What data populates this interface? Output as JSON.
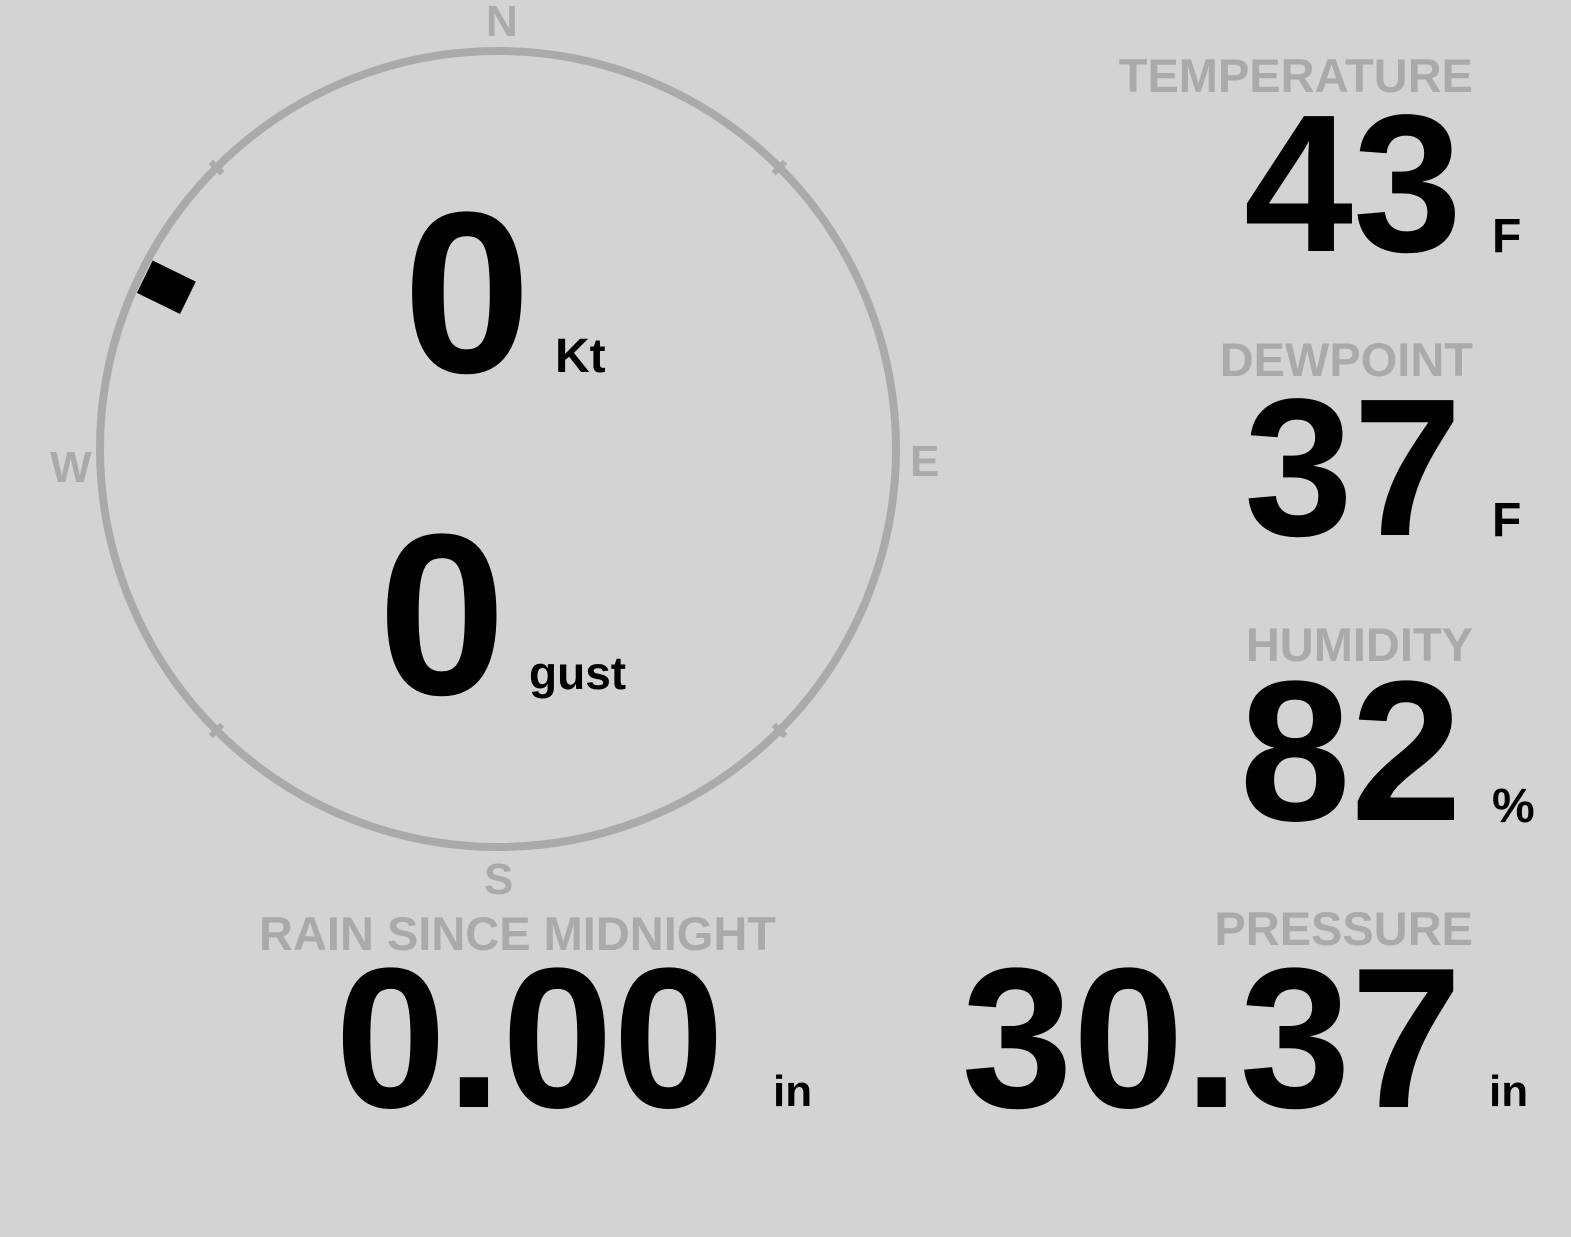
{
  "compass": {
    "north": "N",
    "east": "E",
    "south": "S",
    "west": "W",
    "wind_direction_deg": 296,
    "ring_color": "#aaaaaa",
    "marker_color": "#000000"
  },
  "wind": {
    "speed": "0",
    "speed_unit": "Kt",
    "gust": "0",
    "gust_unit": "gust"
  },
  "temperature": {
    "label": "TEMPERATURE",
    "value": "43",
    "unit": "F"
  },
  "dewpoint": {
    "label": "DEWPOINT",
    "value": "37",
    "unit": "F"
  },
  "humidity": {
    "label": "HUMIDITY",
    "value": "82",
    "unit": "%"
  },
  "rain": {
    "label": "RAIN SINCE MIDNIGHT",
    "value": "0.00",
    "unit": "in"
  },
  "pressure": {
    "label": "PRESSURE",
    "value": "30.37",
    "unit": "in"
  }
}
